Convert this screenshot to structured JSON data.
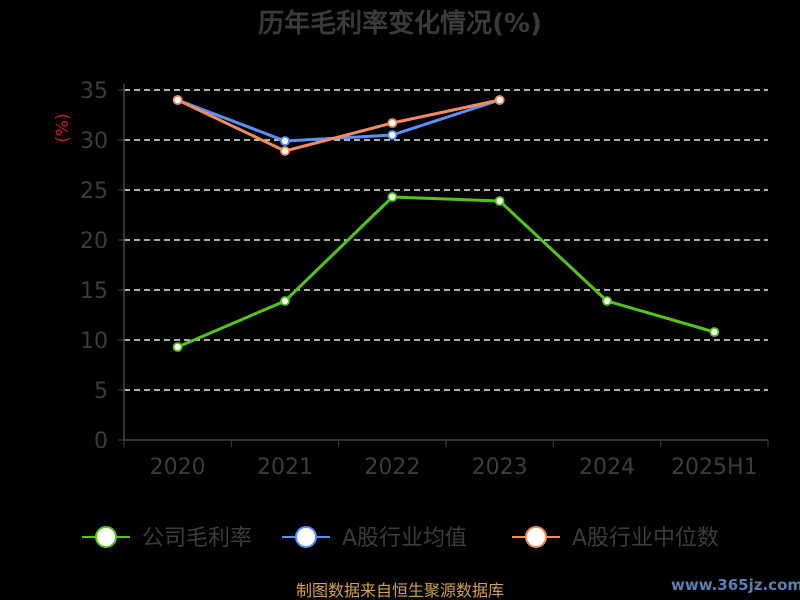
{
  "chart_data": {
    "type": "line",
    "title": "历年毛利率变化情况(%)",
    "ylabel": "(%)",
    "categories": [
      "2020",
      "2021",
      "2022",
      "2023",
      "2024",
      "2025H1"
    ],
    "yticks": [
      "0",
      "5",
      "10",
      "15",
      "20",
      "25",
      "30",
      "35"
    ],
    "ylim": [
      0,
      35
    ],
    "grid": true,
    "legend_position": "bottom",
    "series": [
      {
        "name": "公司毛利率",
        "color": "#52c41a",
        "values": [
          9.3,
          13.9,
          24.3,
          23.9,
          13.9,
          10.8
        ]
      },
      {
        "name": "A股行业均值",
        "color": "#5b8ff9",
        "values": [
          34.0,
          29.9,
          30.5,
          34.0,
          null,
          null
        ]
      },
      {
        "name": "A股行业中位数",
        "color": "#f08c5e",
        "values": [
          34.0,
          28.9,
          31.7,
          34.0,
          null,
          null
        ]
      }
    ]
  },
  "footer": {
    "source": "制图数据来自恒生聚源数据库",
    "watermark": "www.365jz.com"
  }
}
